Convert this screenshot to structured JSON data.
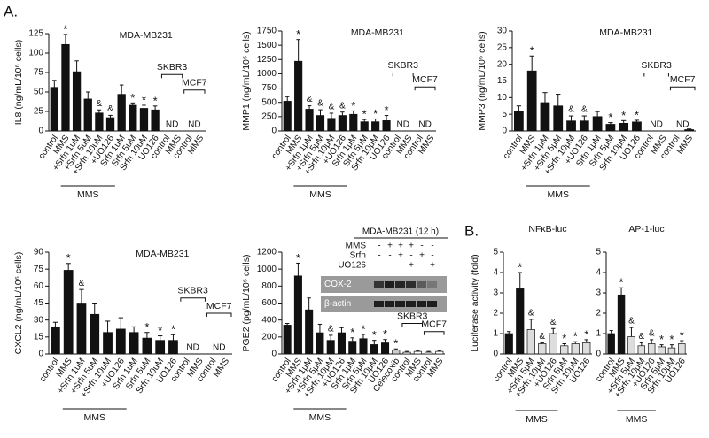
{
  "panel_labels": [
    "A.",
    "B."
  ],
  "chart_data": [
    {
      "type": "bar",
      "title": "MDA-MB231",
      "ylabel": "IL8 (ng/mL/10⁶ cells)",
      "categories": [
        "control",
        "MMS",
        "+Srfn 1uM",
        "+Srfn 5uM",
        "+Srfn 10uM",
        "+UO126",
        "Srfn 1uM",
        "Srfn 5uM",
        "Srfn 10uM",
        "UO126",
        "control",
        "MMS",
        "control",
        "MMS"
      ],
      "values": [
        56,
        111,
        76,
        41,
        23,
        17,
        47,
        33,
        29,
        27,
        null,
        null,
        null,
        null
      ],
      "errors": [
        9,
        13,
        14,
        9,
        4,
        3,
        12,
        3,
        4,
        5,
        null,
        null,
        null,
        null
      ],
      "markers": [
        null,
        "*",
        null,
        null,
        "&",
        "&",
        null,
        "*",
        "*",
        "*",
        "ND",
        null,
        "ND",
        null
      ],
      "groups": [
        {
          "label": "MMS",
          "from": 1,
          "to": 5,
          "placement": "below"
        },
        {
          "label": "SKBR3",
          "from": 10,
          "to": 11,
          "placement": "above"
        },
        {
          "label": "MCF7",
          "from": 12,
          "to": 13,
          "placement": "above"
        }
      ],
      "color": "#111111",
      "ylim": [
        0,
        125
      ],
      "yticks": [
        0,
        25,
        50,
        75,
        100,
        125
      ]
    },
    {
      "type": "bar",
      "title": "MDA-MB231",
      "ylabel": "MMP1 (ng/mL/10⁶ cells)",
      "categories": [
        "control",
        "MMS",
        "+Srfn 1μM",
        "+Srfn 5μM",
        "+Srfn 10μM",
        "+UO126",
        "Srfn 1μM",
        "Srfn 5μM",
        "Srfn 10μM",
        "UO126",
        "control",
        "MMS",
        "control",
        "MMS"
      ],
      "values": [
        520,
        1220,
        380,
        270,
        220,
        270,
        290,
        160,
        160,
        180,
        null,
        null,
        null,
        null
      ],
      "errors": [
        80,
        380,
        60,
        100,
        90,
        60,
        60,
        40,
        50,
        90,
        null,
        null,
        null,
        null
      ],
      "markers": [
        null,
        "*",
        "&",
        "&",
        "&",
        "&",
        "*",
        "*",
        "*",
        "*",
        "ND",
        null,
        "ND",
        null
      ],
      "groups": [
        {
          "label": "MMS",
          "from": 1,
          "to": 5,
          "placement": "below"
        },
        {
          "label": "SKBR3",
          "from": 10,
          "to": 11,
          "placement": "above"
        },
        {
          "label": "MCF7",
          "from": 12,
          "to": 13,
          "placement": "above"
        }
      ],
      "color": "#111111",
      "ylim": [
        0,
        1750
      ],
      "yticks": [
        0,
        250,
        500,
        750,
        1000,
        1250,
        1500,
        1750
      ]
    },
    {
      "type": "bar",
      "title": "MDA-MB231",
      "ylabel": "MMP3 (ng/mL/10⁶ cells)",
      "categories": [
        "control",
        "MMS",
        "+Srfn 1μM",
        "+Srfn 5μM",
        "+Srfn 10μM",
        "+UO126",
        "Srfn 1μM",
        "Srfn 5μM",
        "Srfn 10μM",
        "UO126",
        "control",
        "MMS",
        "control",
        "MMS"
      ],
      "values": [
        6,
        18,
        8.5,
        7.5,
        3,
        3,
        4.3,
        2,
        2.3,
        2.7,
        null,
        null,
        null,
        0.4
      ],
      "errors": [
        1.5,
        4.5,
        3,
        3.5,
        1.5,
        1.5,
        1.5,
        0.5,
        0.8,
        0.5,
        null,
        null,
        null,
        0.2
      ],
      "markers": [
        null,
        "*",
        null,
        null,
        "&",
        "&",
        null,
        "*",
        "*",
        "*",
        "ND",
        null,
        "ND",
        null
      ],
      "groups": [
        {
          "label": "MMS",
          "from": 1,
          "to": 5,
          "placement": "below"
        },
        {
          "label": "SKBR3",
          "from": 10,
          "to": 11,
          "placement": "above"
        },
        {
          "label": "MCF7",
          "from": 12,
          "to": 13,
          "placement": "above"
        }
      ],
      "color": "#111111",
      "ylim": [
        0,
        30
      ],
      "yticks": [
        0,
        5,
        10,
        15,
        20,
        25,
        30
      ]
    },
    {
      "type": "bar",
      "title": "MDA-MB231",
      "ylabel": "CXCL2 (ng/mL/10⁶ cells)",
      "categories": [
        "control",
        "MMS",
        "+Srfn 1uM",
        "+Srfn 5uM",
        "+Srfn 10uM",
        "+UO126",
        "Srfn 1uM",
        "Srfn 5uM",
        "Srfn 10uM",
        "UO126",
        "control",
        "MMS",
        "control",
        "MMS"
      ],
      "values": [
        24,
        74,
        45,
        35,
        19,
        22,
        19,
        14,
        12,
        12,
        null,
        null,
        null,
        null
      ],
      "errors": [
        4,
        6,
        12,
        10,
        10,
        10,
        5,
        5,
        4,
        5,
        null,
        null,
        null,
        null
      ],
      "markers": [
        null,
        "*",
        "&",
        null,
        null,
        null,
        null,
        "*",
        "*",
        "*",
        "ND",
        null,
        "ND",
        null
      ],
      "groups": [
        {
          "label": "MMS",
          "from": 1,
          "to": 5,
          "placement": "below"
        },
        {
          "label": "SKBR3",
          "from": 10,
          "to": 11,
          "placement": "above"
        },
        {
          "label": "MCF7",
          "from": 12,
          "to": 13,
          "placement": "above"
        }
      ],
      "color": "#111111",
      "ylim": [
        0,
        90
      ],
      "yticks": [
        0,
        15,
        30,
        45,
        60,
        75,
        90
      ]
    },
    {
      "type": "bar",
      "ylabel": "PGE2 (pg/mL/10⁶ cells)",
      "categories": [
        "control",
        "MMS",
        "+Srfn 1μM",
        "+Srfn 5μM",
        "+Srfn 10μM",
        "+UO126",
        "Srfn 1μM",
        "Srfn 5μM",
        "Srfn 10μM",
        "UO126",
        "Celecoxib",
        "control",
        "MMS",
        "control",
        "MMS"
      ],
      "values": [
        340,
        920,
        520,
        250,
        160,
        250,
        150,
        180,
        110,
        130,
        45,
        20,
        30,
        20,
        30
      ],
      "errors": [
        20,
        150,
        140,
        100,
        60,
        60,
        40,
        50,
        50,
        40,
        15,
        10,
        10,
        10,
        10
      ],
      "markers": [
        null,
        "*",
        null,
        null,
        "&",
        null,
        "*",
        "*",
        "*",
        "*",
        "*",
        null,
        null,
        null,
        null
      ],
      "groups": [
        {
          "label": "MMS",
          "from": 1,
          "to": 5,
          "placement": "below"
        },
        {
          "label": "SKBR3",
          "from": 11,
          "to": 12,
          "placement": "above"
        },
        {
          "label": "MCF7",
          "from": 13,
          "to": 14,
          "placement": "above"
        }
      ],
      "color": "#111111",
      "colors": [
        "#111111",
        "#111111",
        "#111111",
        "#111111",
        "#111111",
        "#111111",
        "#111111",
        "#111111",
        "#111111",
        "#111111",
        "#cccccc",
        "#ffffff",
        "#ffffff",
        "#ffffff",
        "#ffffff"
      ],
      "ylim": [
        0,
        1200
      ],
      "yticks": [
        0,
        200,
        400,
        600,
        800,
        1000,
        1200
      ],
      "inset": {
        "title": "MDA-MB231 (12 h)",
        "rows": [
          {
            "label": "MMS",
            "signs": [
              "-",
              "+",
              "+",
              "+",
              "-",
              "-"
            ]
          },
          {
            "label": "Srfn",
            "signs": [
              "-",
              "-",
              "+",
              "-",
              "+",
              "-"
            ]
          },
          {
            "label": "UO126",
            "signs": [
              "-",
              "-",
              "-",
              "+",
              "-",
              "+"
            ]
          }
        ],
        "bands": [
          "COX-2",
          "β-actin"
        ]
      }
    },
    {
      "type": "bar",
      "title": "NFκB-luc",
      "ylabel": "Luciferase activity (fold)",
      "categories": [
        "control",
        "MMS",
        "+Srfn 5μM",
        "+Srfn 10μM",
        "+UO126",
        "Srfn 5μM",
        "Srfn 10μM",
        "UO126"
      ],
      "values": [
        1,
        3.2,
        1.2,
        0.5,
        1.0,
        0.4,
        0.5,
        0.55
      ],
      "errors": [
        0.1,
        0.8,
        0.5,
        0.05,
        0.25,
        0.1,
        0.1,
        0.15
      ],
      "markers": [
        null,
        "*",
        "&",
        "&",
        "&",
        "*",
        "*",
        "*"
      ],
      "groups": [
        {
          "label": "MMS",
          "from": 1,
          "to": 4,
          "placement": "below"
        }
      ],
      "color": "#111111",
      "colors": [
        "#111111",
        "#111111",
        "#dddddd",
        "#dddddd",
        "#dddddd",
        "#dddddd",
        "#dddddd",
        "#dddddd"
      ],
      "ylim": [
        0,
        5
      ],
      "yticks": [
        0,
        1,
        2,
        3,
        4,
        5
      ]
    },
    {
      "type": "bar",
      "title": "AP-1-luc",
      "categories": [
        "control",
        "MMS",
        "+Srfn 5μM",
        "+Srfn 10μM",
        "+UO126",
        "Srfn 5μM",
        "Srfn 10μM",
        "UO126"
      ],
      "values": [
        1,
        2.9,
        0.85,
        0.4,
        0.5,
        0.35,
        0.3,
        0.5
      ],
      "errors": [
        0.15,
        0.35,
        0.45,
        0.15,
        0.2,
        0.1,
        0.15,
        0.15
      ],
      "markers": [
        null,
        "*",
        "&",
        "&",
        "&",
        "*",
        "*",
        "*"
      ],
      "groups": [
        {
          "label": "MMS",
          "from": 1,
          "to": 4,
          "placement": "below"
        }
      ],
      "color": "#111111",
      "colors": [
        "#111111",
        "#111111",
        "#dddddd",
        "#dddddd",
        "#dddddd",
        "#dddddd",
        "#dddddd",
        "#dddddd"
      ],
      "ylim": [
        0,
        5
      ],
      "yticks": [
        0,
        1,
        2,
        3,
        4,
        5
      ]
    }
  ]
}
